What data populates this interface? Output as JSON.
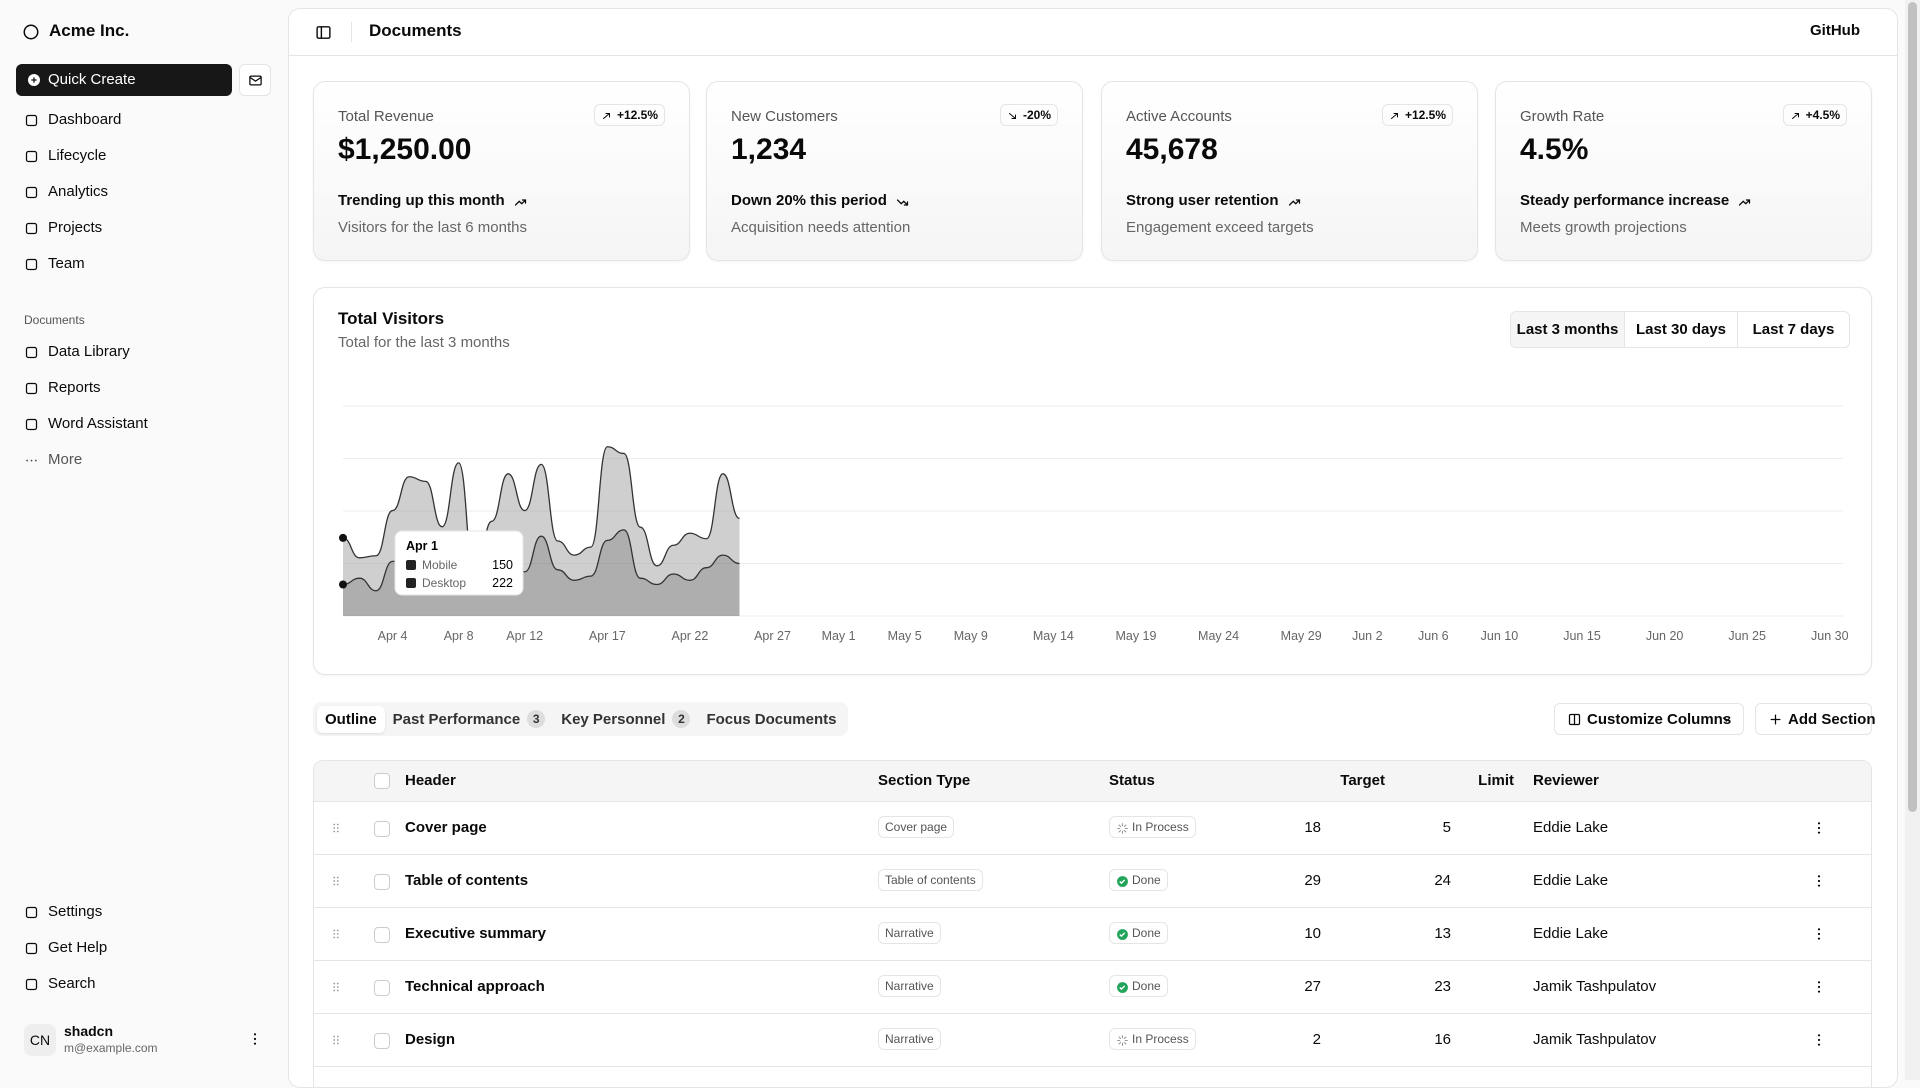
{
  "sidebar": {
    "brand": "Acme Inc.",
    "quick_create": "Quick Create",
    "nav": [
      "Dashboard",
      "Lifecycle",
      "Analytics",
      "Projects",
      "Team"
    ],
    "documents_label": "Documents",
    "documents": [
      "Data Library",
      "Reports",
      "Word Assistant"
    ],
    "more": "More",
    "footer": [
      "Settings",
      "Get Help",
      "Search"
    ],
    "user": {
      "initials": "CN",
      "name": "shadcn",
      "email": "m@example.com"
    }
  },
  "header": {
    "title": "Documents",
    "link": "GitHub"
  },
  "cards": [
    {
      "label": "Total Revenue",
      "badge": "+12.5%",
      "value": "$1,250.00",
      "trend": "Trending up this month",
      "note": "Visitors for the last 6 months",
      "up": true
    },
    {
      "label": "New Customers",
      "badge": "-20%",
      "value": "1,234",
      "trend": "Down 20% this period",
      "note": "Acquisition needs attention",
      "up": false
    },
    {
      "label": "Active Accounts",
      "badge": "+12.5%",
      "value": "45,678",
      "trend": "Strong user retention",
      "note": "Engagement exceed targets",
      "up": true
    },
    {
      "label": "Growth Rate",
      "badge": "+4.5%",
      "value": "4.5%",
      "trend": "Steady performance increase",
      "note": "Meets growth projections",
      "up": true
    }
  ],
  "chart_data": {
    "type": "area",
    "title": "Total Visitors",
    "subtitle": "Total for the last 3 months",
    "ranges": [
      "Last 3 months",
      "Last 30 days",
      "Last 7 days"
    ],
    "stacked": true,
    "grid": true,
    "ylim": [
      0,
      1000
    ],
    "categories": [
      null,
      null,
      null,
      "Apr 4",
      null,
      null,
      null,
      "Apr 8",
      null,
      null,
      null,
      "Apr 12",
      null,
      null,
      null,
      null,
      "Apr 17",
      null,
      null,
      null,
      null,
      "Apr 22",
      null,
      null,
      null,
      null,
      "Apr 27",
      null,
      null,
      null,
      "May 1",
      null,
      null,
      null,
      "May 5",
      null,
      null,
      null,
      "May 9",
      null,
      null,
      null,
      null,
      "May 14",
      null,
      null,
      null,
      null,
      "May 19",
      null,
      null,
      null,
      null,
      "May 24",
      null,
      null,
      null,
      null,
      "May 29",
      null,
      null,
      null,
      "Jun 2",
      null,
      null,
      null,
      "Jun 6",
      null,
      null,
      null,
      "Jun 10",
      null,
      null,
      null,
      null,
      "Jun 15",
      null,
      null,
      null,
      null,
      "Jun 20",
      null,
      null,
      null,
      null,
      "Jun 25",
      null,
      null,
      null,
      null,
      "Jun 30"
    ],
    "series": [
      {
        "name": "Mobile",
        "color": "#6b6b6b",
        "values": [
          150,
          180,
          120,
          260,
          290,
          340,
          180,
          320,
          110,
          190,
          350,
          210,
          380,
          220,
          170,
          190,
          360,
          410,
          180,
          150,
          200,
          170,
          230,
          290,
          250,
          null,
          null,
          null,
          null,
          null,
          null,
          null,
          null,
          null,
          null,
          null,
          null,
          null,
          null,
          null,
          null,
          null,
          null,
          null,
          null,
          null,
          null,
          null,
          null,
          null,
          null,
          null,
          null,
          null,
          null,
          null,
          null,
          null,
          null,
          null,
          null,
          null,
          null,
          null,
          null,
          null,
          null,
          null,
          null,
          null,
          null,
          null,
          null,
          null,
          null,
          null,
          null,
          null,
          null,
          null,
          null,
          null,
          null,
          null,
          null,
          null,
          null,
          null,
          null,
          null,
          null
        ]
      },
      {
        "name": "Desktop",
        "color": "#a8a8a8",
        "values": [
          222,
          97,
          167,
          242,
          373,
          301,
          245,
          409,
          59,
          261,
          327,
          292,
          342,
          137,
          120,
          138,
          446,
          364,
          243,
          89,
          137,
          224,
          138,
          387,
          215,
          null,
          null,
          null,
          null,
          null,
          null,
          null,
          null,
          null,
          null,
          null,
          null,
          null,
          null,
          null,
          null,
          null,
          null,
          null,
          null,
          null,
          null,
          null,
          null,
          null,
          null,
          null,
          null,
          null,
          null,
          null,
          null,
          null,
          null,
          null,
          null,
          null,
          null,
          null,
          null,
          null,
          null,
          null,
          null,
          null,
          null,
          null,
          null,
          null,
          null,
          null,
          null,
          null,
          null,
          null,
          null,
          null,
          null,
          null,
          null,
          null,
          null,
          null,
          null,
          null,
          null
        ]
      }
    ],
    "tooltip": {
      "label": "Apr 1"
    }
  },
  "tabs": [
    {
      "label": "Outline"
    },
    {
      "label": "Past Performance",
      "count": 3
    },
    {
      "label": "Key Personnel",
      "count": 2
    },
    {
      "label": "Focus Documents"
    }
  ],
  "buttons": [
    "Customize Columns",
    "Add Section"
  ],
  "table": {
    "columns": [
      "Header",
      "Section Type",
      "Status",
      "Target",
      "Limit",
      "Reviewer"
    ],
    "rows": [
      [
        "Cover page",
        "Cover page",
        "In Process",
        18,
        5,
        "Eddie Lake"
      ],
      [
        "Table of contents",
        "Table of contents",
        "Done",
        29,
        24,
        "Eddie Lake"
      ],
      [
        "Executive summary",
        "Narrative",
        "Done",
        10,
        13,
        "Eddie Lake"
      ],
      [
        "Technical approach",
        "Narrative",
        "Done",
        27,
        23,
        "Jamik Tashpulatov"
      ],
      [
        "Design",
        "Narrative",
        "In Process",
        2,
        16,
        "Jamik Tashpulatov"
      ]
    ]
  }
}
